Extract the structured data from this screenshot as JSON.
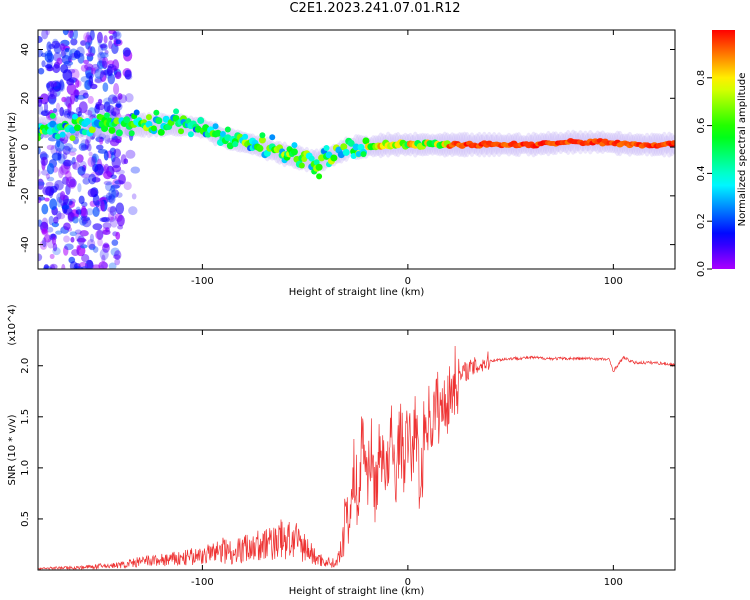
{
  "title": "C2E1.2023.241.07.01.R12",
  "chart_data": [
    {
      "type": "heatmap",
      "xlabel": "Height of straight line (km)",
      "ylabel": "Frequency (Hz)",
      "xlim": [
        -180,
        130
      ],
      "ylim": [
        -50,
        48
      ],
      "xticks": [
        -100,
        0,
        100
      ],
      "yticks": [
        -40,
        -20,
        0,
        20,
        40
      ],
      "colorbar": {
        "label": "Normalized spectral amplitude",
        "range": [
          0,
          1
        ],
        "ticks": [
          "0.0",
          "0.2",
          "0.4",
          "0.6",
          "0.8"
        ]
      },
      "ridge": {
        "x": [
          -180,
          -150,
          -130,
          -110,
          -100,
          -90,
          -75,
          -60,
          -45,
          -35,
          -28,
          -20,
          -10,
          0,
          20,
          40,
          60,
          80,
          95,
          110,
          130
        ],
        "y": [
          8,
          8,
          9,
          9,
          8,
          4,
          1,
          -3,
          -6,
          -3,
          0,
          0,
          1,
          1,
          1,
          1,
          1,
          2,
          2,
          1,
          1
        ]
      }
    },
    {
      "type": "line",
      "xlabel": "Height of straight line (km)",
      "ylabel": "SNR (10 * v/v)",
      "y_multiplier": "(x10^4)",
      "xlim": [
        -180,
        130
      ],
      "ylim": [
        0,
        2.35
      ],
      "xticks": [
        -100,
        0,
        100
      ],
      "yticks": [
        0.5,
        1.0,
        1.5,
        2.0
      ],
      "ytick_labels": [
        "0.5",
        "1.0",
        "1.5",
        "2.0"
      ],
      "series": [
        {
          "color": "#ee3333",
          "x": [
            -180,
            -160,
            -140,
            -130,
            -120,
            -110,
            -100,
            -95,
            -90,
            -85,
            -80,
            -75,
            -70,
            -65,
            -60,
            -55,
            -50,
            -45,
            -40,
            -35,
            -32,
            -30,
            -28,
            -26,
            -24,
            -22,
            -20,
            -18,
            -16,
            -14,
            -12,
            -10,
            -8,
            -6,
            -4,
            -2,
            0,
            2,
            4,
            6,
            8,
            10,
            12,
            14,
            16,
            18,
            20,
            22,
            25,
            28,
            32,
            36,
            40,
            50,
            60,
            70,
            80,
            90,
            98,
            100,
            105,
            110,
            120,
            130
          ],
          "y": [
            0.02,
            0.03,
            0.06,
            0.1,
            0.12,
            0.14,
            0.18,
            0.2,
            0.25,
            0.22,
            0.26,
            0.3,
            0.3,
            0.35,
            0.38,
            0.35,
            0.28,
            0.15,
            0.1,
            0.08,
            0.25,
            0.7,
            0.5,
            1.0,
            0.6,
            1.4,
            0.9,
            1.2,
            0.75,
            1.1,
            1.2,
            0.9,
            1.3,
            0.9,
            1.35,
            1.1,
            1.3,
            1.15,
            1.45,
            0.7,
            1.4,
            1.5,
            1.45,
            1.65,
            1.5,
            1.7,
            1.65,
            1.85,
            1.88,
            1.95,
            1.98,
            2.02,
            2.05,
            2.07,
            2.08,
            2.07,
            2.07,
            2.07,
            2.06,
            1.95,
            2.08,
            2.03,
            2.03,
            2.01
          ]
        }
      ]
    }
  ]
}
